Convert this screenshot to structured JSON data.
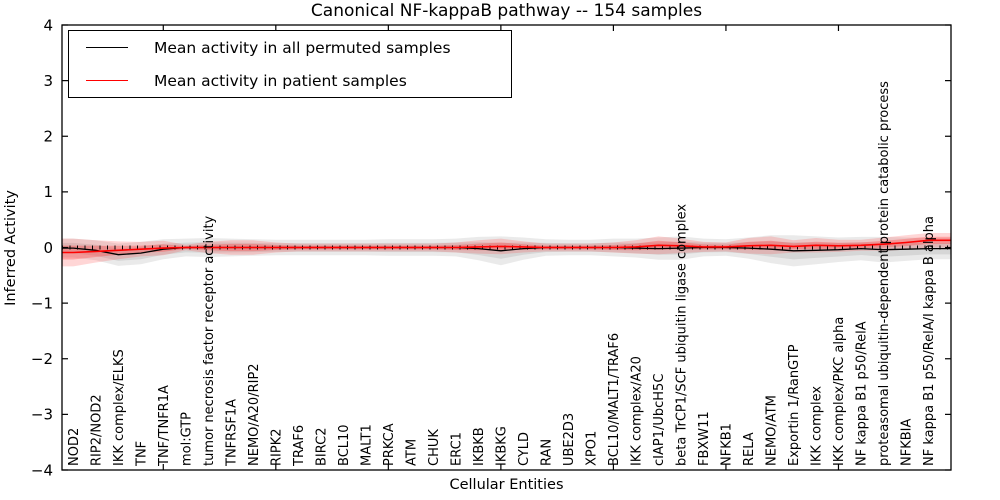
{
  "chart_data": {
    "type": "line",
    "title": "Canonical NF-kappaB pathway -- 154 samples",
    "xlabel": "Cellular Entities",
    "ylabel": "Inferred Activity",
    "ylim": [
      -4,
      4
    ],
    "y_ticks": [
      4,
      3,
      2,
      1,
      0,
      -1,
      -2,
      -3,
      -4
    ],
    "y_tick_labels": [
      "4",
      "3",
      "2",
      "1",
      "0",
      "−1",
      "−2",
      "−3",
      "−4"
    ],
    "x_major_tick_indices": [
      4,
      9,
      14,
      19,
      24,
      29,
      34
    ],
    "x_tick_label_rotation": 90,
    "grid": false,
    "legend_position": "upper left",
    "background_color": "#ffffff",
    "zero_baseline": {
      "value": 0,
      "style": "dotted-tick-markers",
      "color": "#000000"
    },
    "categories": [
      "NOD2",
      "RIP2/NOD2",
      "IKK complex/ELKS",
      "TNF",
      "TNF/TNFR1A",
      "mol:GTP",
      "tumor necrosis factor receptor activity",
      "TNFRSF1A",
      "NEMO/A20/RIP2",
      "RIPK2",
      "TRAF6",
      "BIRC2",
      "BCL10",
      "MALT1",
      "PRKCA",
      "ATM",
      "CHUK",
      "ERC1",
      "IKBKB",
      "IKBKG",
      "CYLD",
      "RAN",
      "UBE2D3",
      "XPO1",
      "BCL10/MALT1/TRAF6",
      "IKK complex/A20",
      "cIAP1/UbcH5C",
      "beta TrCP1/SCF ubiquitin ligase complex",
      "FBXW11",
      "NFKB1",
      "RELA",
      "NEMO/ATM",
      "Exportin 1/RanGTP",
      "IKK complex",
      "IKK complex/PKC alpha",
      "NF kappa B1 p50/RelA",
      "proteasomal ubiquitin-dependent protein catabolic process",
      "NFKBIA",
      "NF kappa B1 p50/RelA/I kappa B alpha"
    ],
    "series": [
      {
        "name": "Mean activity in all permuted samples",
        "color": "#000000",
        "band_color": "#888888",
        "values": [
          -0.01,
          -0.05,
          -0.13,
          -0.1,
          -0.03,
          0.0,
          0.0,
          0.0,
          0.0,
          0.0,
          0.0,
          0.0,
          0.0,
          0.0,
          0.0,
          0.0,
          0.0,
          0.0,
          -0.02,
          -0.06,
          -0.02,
          0.0,
          0.0,
          0.0,
          0.0,
          -0.01,
          -0.02,
          -0.01,
          0.0,
          0.0,
          -0.01,
          -0.03,
          -0.06,
          -0.05,
          -0.04,
          -0.02,
          -0.04,
          -0.03,
          -0.02
        ],
        "band_halfwidth": [
          0.17,
          0.18,
          0.2,
          0.2,
          0.18,
          0.16,
          0.17,
          0.16,
          0.15,
          0.14,
          0.14,
          0.14,
          0.14,
          0.14,
          0.15,
          0.15,
          0.15,
          0.16,
          0.21,
          0.26,
          0.2,
          0.15,
          0.14,
          0.14,
          0.16,
          0.17,
          0.2,
          0.21,
          0.16,
          0.15,
          0.19,
          0.25,
          0.28,
          0.25,
          0.22,
          0.21,
          0.23,
          0.21,
          0.19
        ]
      },
      {
        "name": "Mean activity in patient samples",
        "color": "#ff0000",
        "band_color": "#ff3030",
        "values": [
          -0.09,
          -0.07,
          -0.05,
          -0.03,
          -0.01,
          0.0,
          0.0,
          0.0,
          0.0,
          0.0,
          0.0,
          0.0,
          0.0,
          0.0,
          0.0,
          0.0,
          0.0,
          0.0,
          0.01,
          0.02,
          0.01,
          0.0,
          0.0,
          0.0,
          0.0,
          0.01,
          0.04,
          0.03,
          0.01,
          0.01,
          0.03,
          0.04,
          0.02,
          0.04,
          0.03,
          0.04,
          0.06,
          0.09,
          0.13
        ],
        "band_halfwidth": [
          0.25,
          0.2,
          0.16,
          0.13,
          0.13,
          0.05,
          0.1,
          0.13,
          0.13,
          0.09,
          0.07,
          0.07,
          0.07,
          0.07,
          0.07,
          0.07,
          0.07,
          0.09,
          0.12,
          0.14,
          0.1,
          0.07,
          0.07,
          0.07,
          0.09,
          0.12,
          0.16,
          0.13,
          0.09,
          0.08,
          0.14,
          0.16,
          0.11,
          0.13,
          0.11,
          0.1,
          0.12,
          0.13,
          0.13
        ]
      }
    ]
  }
}
